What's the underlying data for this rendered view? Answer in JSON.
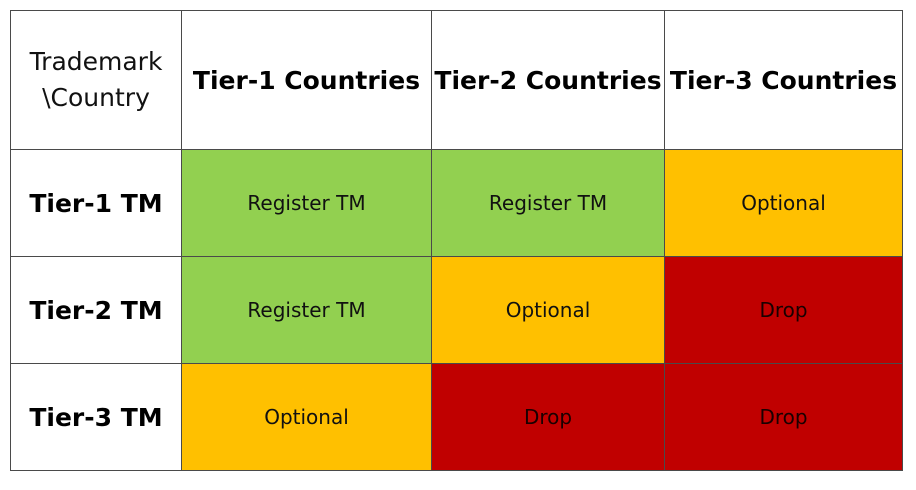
{
  "corner_label": {
    "line1": "Trademark",
    "line2": "\\Country"
  },
  "columns": [
    "Tier-1 Countries",
    "Tier-2 Countries",
    "Tier-3 Countries"
  ],
  "rows": [
    {
      "label": "Tier-1 TM",
      "cells": [
        "Register TM",
        "Register TM",
        "Optional"
      ]
    },
    {
      "label": "Tier-2 TM",
      "cells": [
        "Register TM",
        "Optional",
        "Drop"
      ]
    },
    {
      "label": "Tier-3 TM",
      "cells": [
        "Optional",
        "Drop",
        "Drop"
      ]
    }
  ],
  "colors": {
    "register": "#92d050",
    "optional": "#ffc000",
    "drop": "#c00000"
  }
}
